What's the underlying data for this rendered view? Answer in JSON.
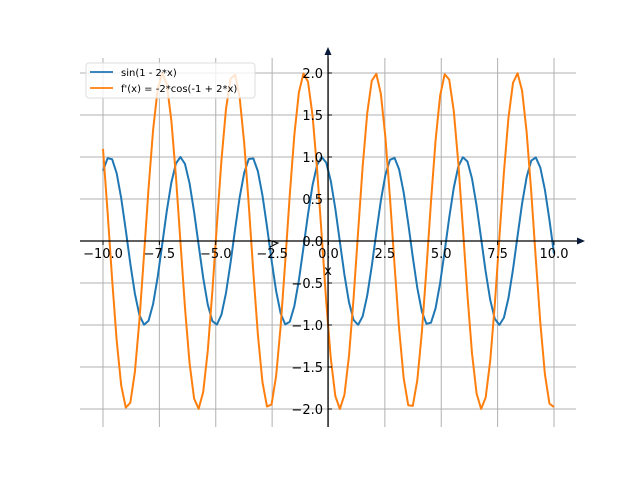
{
  "chart_data": {
    "type": "line",
    "title": "",
    "xlabel": "x",
    "ylabel": "",
    "xlim": [
      -10,
      10
    ],
    "ylim": [
      -2,
      2
    ],
    "grid": true,
    "legend_placement": "top-left",
    "x_ticks": [
      "−10.0",
      "−7.5",
      "−5.0",
      "−2.5",
      "0.0",
      "2.5",
      "5.0",
      "7.5",
      "10.0"
    ],
    "x_tick_values": [
      -10,
      -7.5,
      -5,
      -2.5,
      0,
      2.5,
      5,
      7.5,
      10
    ],
    "y_ticks": [
      "−2.0",
      "−1.5",
      "−1.0",
      "−0.5",
      "0.0",
      "0.5",
      "1.0",
      "1.5",
      "2.0"
    ],
    "y_tick_values": [
      -2,
      -1.5,
      -1,
      -0.5,
      0,
      0.5,
      1,
      1.5,
      2
    ],
    "samples": 100,
    "series": [
      {
        "name": "sin(1 - 2*x)",
        "color": "#1f77b4",
        "expr": "sin(1-2x)"
      },
      {
        "name": "f'(x) = -2*cos(-1 + 2*x)",
        "color": "#ff7f0e",
        "expr": "-2cos(-1+2x)"
      }
    ]
  }
}
